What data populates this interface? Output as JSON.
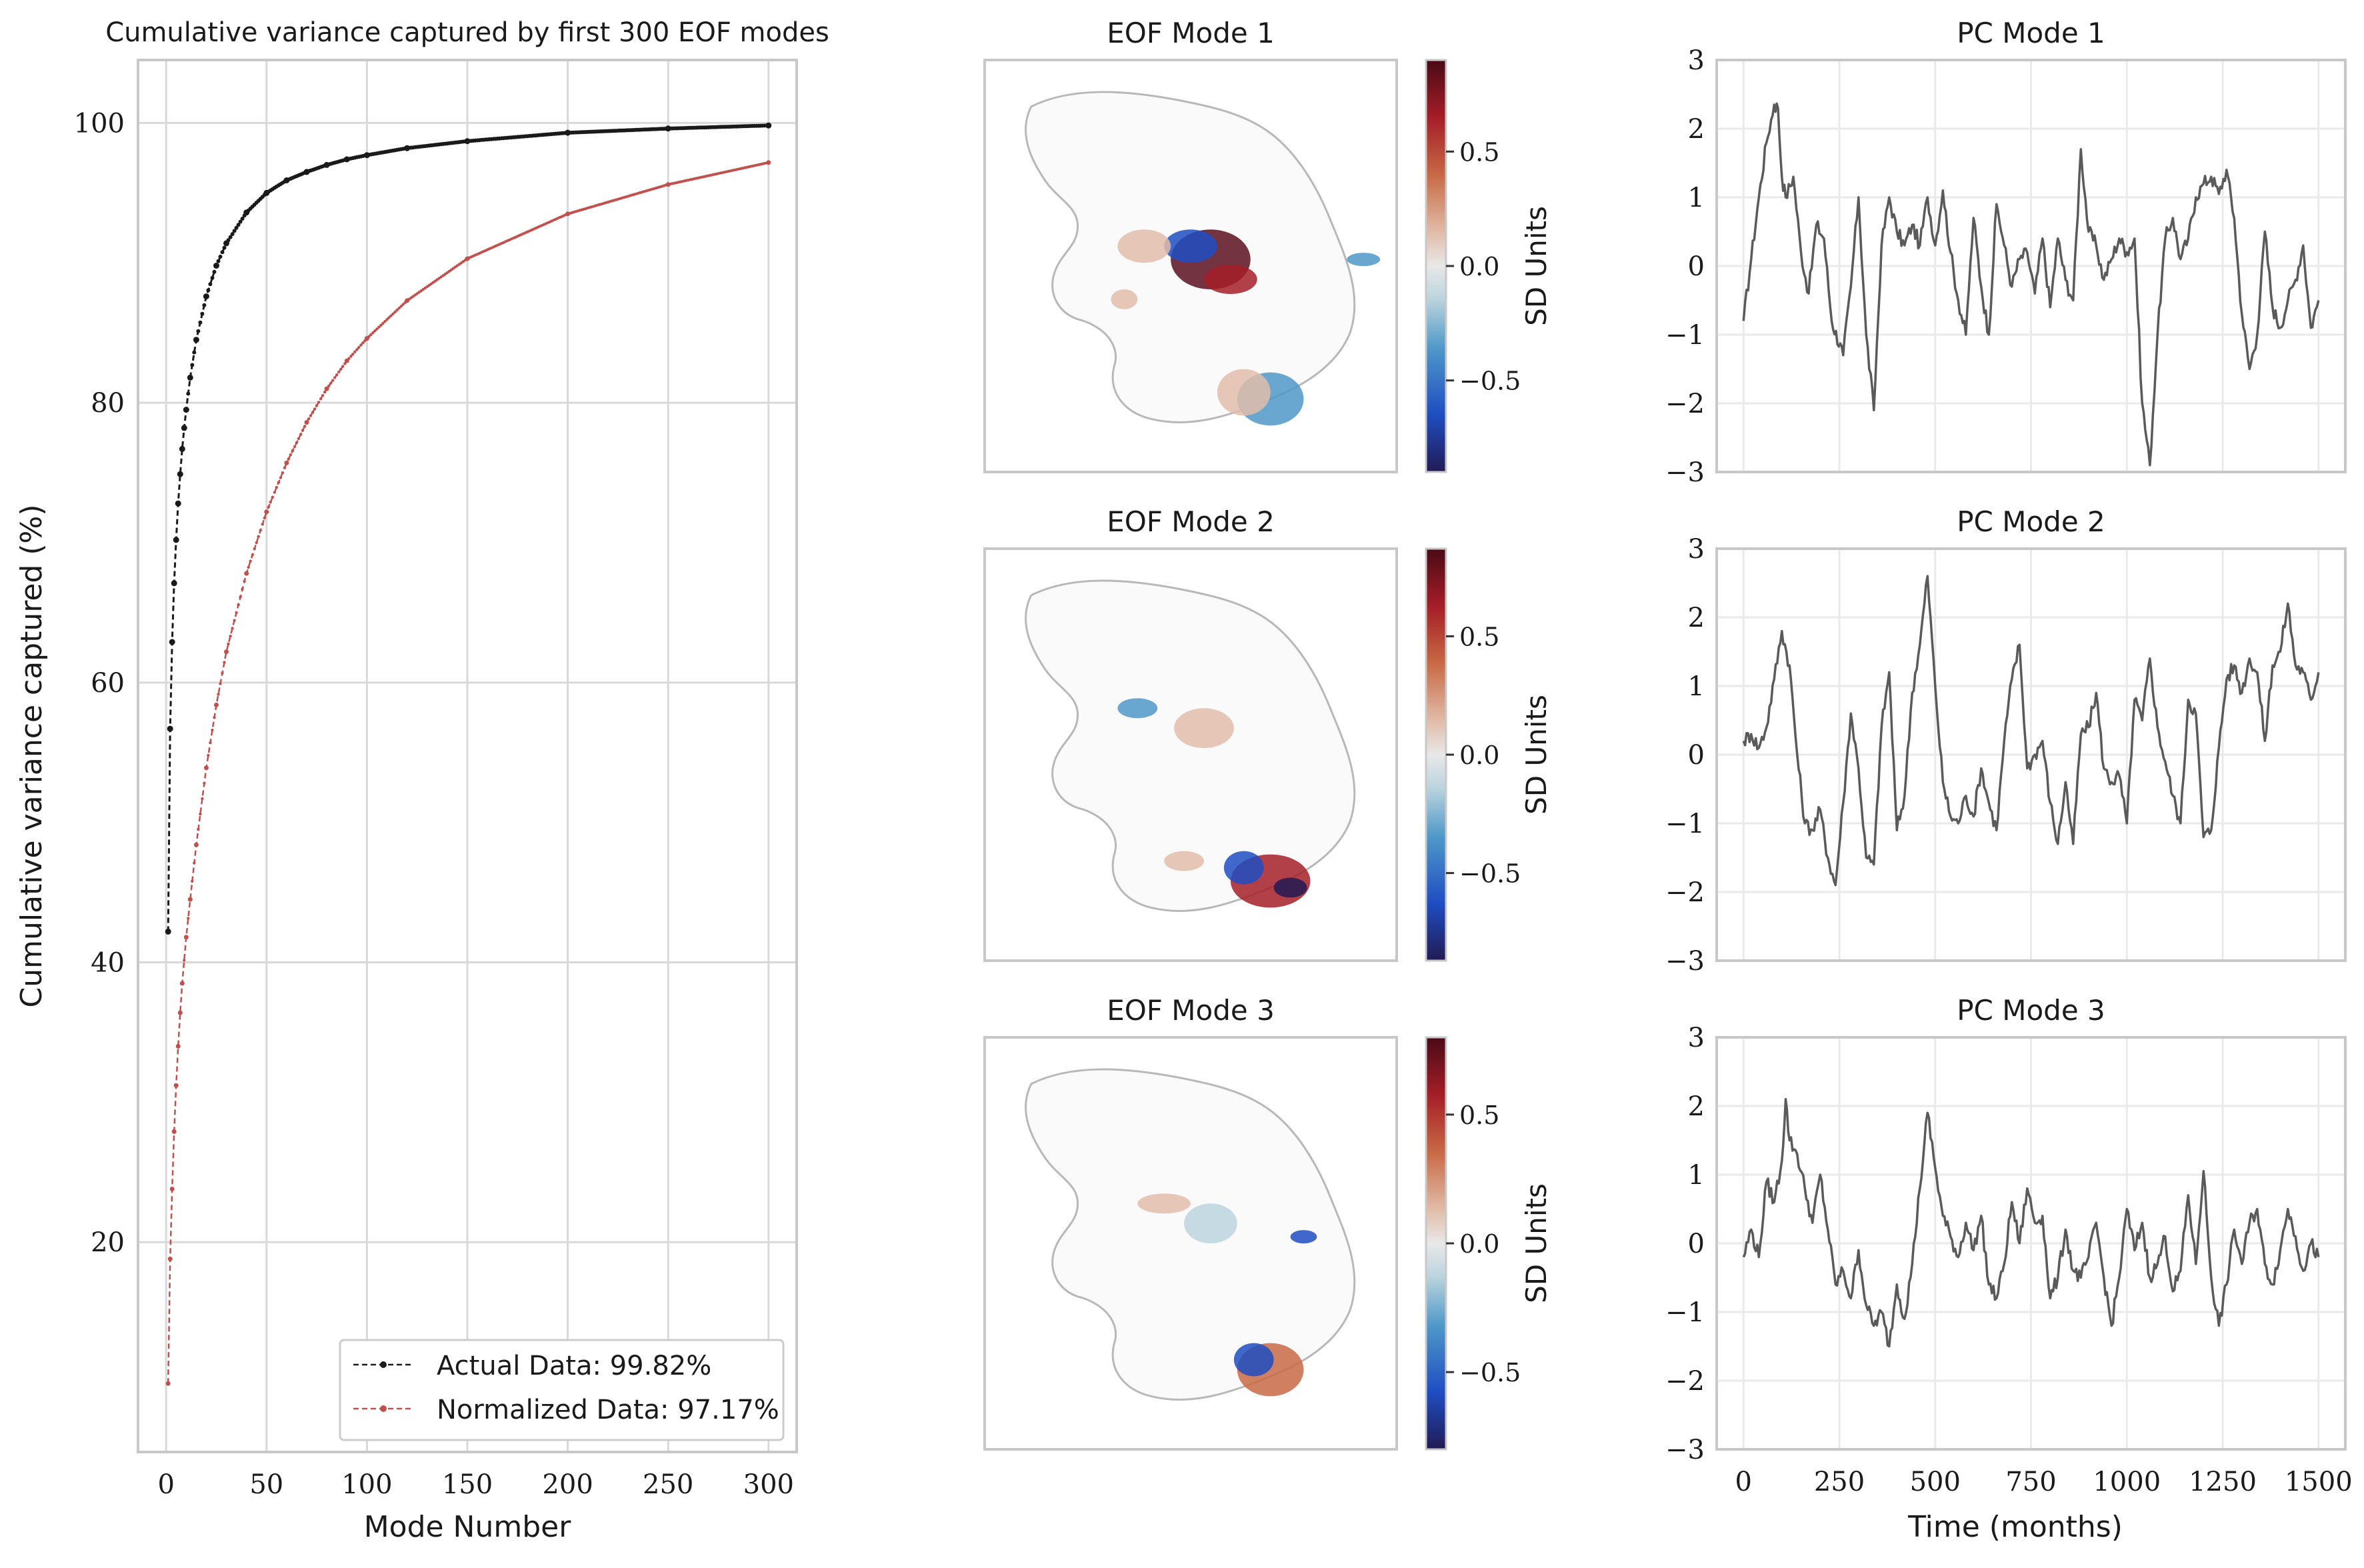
{
  "colors": {
    "actual": "#1a1a1a",
    "normalized": "#c0504d",
    "pc_line": "#5a5a5a",
    "grid": "#d9d9d9",
    "grid_light": "#eaeaea",
    "axes": "#c8c8c8",
    "cmap": [
      "#221a55",
      "#1f4ec2",
      "#4f98c9",
      "#bcd4de",
      "#e8e8e8",
      "#e2bdaa",
      "#c86a45",
      "#a51e28",
      "#4a0a16"
    ]
  },
  "chart_data": [
    {
      "type": "line",
      "title": "Cumulative variance captured by first 300 EOF modes",
      "xlabel": "Mode Number",
      "ylabel": "Cumulative variance captured (%)",
      "xlim": [
        -14,
        314
      ],
      "ylim": [
        5,
        104.5
      ],
      "xticks": [
        0,
        50,
        100,
        150,
        200,
        250,
        300
      ],
      "yticks": [
        20,
        40,
        60,
        80,
        100
      ],
      "grid": true,
      "legend_position": "lower-right",
      "series": [
        {
          "name": "Actual Data: 99.82%",
          "marker": "dot",
          "linestyle": "dashed",
          "x": [
            1,
            2,
            3,
            4,
            5,
            6,
            7,
            8,
            9,
            10,
            12,
            15,
            20,
            25,
            30,
            40,
            50,
            60,
            70,
            80,
            90,
            100,
            120,
            150,
            200,
            250,
            300
          ],
          "y": [
            42.2,
            56.7,
            62.9,
            67.1,
            70.2,
            72.8,
            74.9,
            76.7,
            78.2,
            79.5,
            81.8,
            84.5,
            87.6,
            89.8,
            91.4,
            93.6,
            95.0,
            95.9,
            96.5,
            97.0,
            97.4,
            97.7,
            98.2,
            98.7,
            99.3,
            99.6,
            99.82
          ]
        },
        {
          "name": "Normalized Data: 97.17%",
          "marker": "dot",
          "linestyle": "dashed",
          "x": [
            1,
            2,
            3,
            4,
            5,
            6,
            7,
            8,
            10,
            12,
            15,
            20,
            25,
            30,
            40,
            50,
            60,
            70,
            80,
            90,
            100,
            120,
            150,
            200,
            250,
            300
          ],
          "y": [
            9.9,
            18.8,
            23.8,
            27.9,
            31.2,
            34.0,
            36.4,
            38.5,
            41.8,
            44.5,
            48.4,
            53.9,
            58.4,
            62.2,
            67.8,
            72.2,
            75.7,
            78.6,
            81.0,
            83.0,
            84.6,
            87.3,
            90.3,
            93.5,
            95.6,
            97.17
          ]
        }
      ]
    },
    {
      "type": "heatmap",
      "panel": "map",
      "title": "EOF Mode 1",
      "colorbar_label": "SD Units",
      "colorbar_range": [
        -0.9,
        0.9
      ],
      "colorbar_ticks": [
        -0.5,
        0.0,
        0.5
      ],
      "colorbar_tick_labels": [
        "−0.5",
        "0.0",
        "0.5"
      ]
    },
    {
      "type": "heatmap",
      "panel": "map",
      "title": "EOF Mode 2",
      "colorbar_label": "SD Units",
      "colorbar_range": [
        -0.87,
        0.87
      ],
      "colorbar_ticks": [
        -0.5,
        0.0,
        0.5
      ],
      "colorbar_tick_labels": [
        "−0.5",
        "0.0",
        "0.5"
      ]
    },
    {
      "type": "heatmap",
      "panel": "map",
      "title": "EOF Mode 3",
      "colorbar_label": "SD Units",
      "colorbar_range": [
        -0.8,
        0.8
      ],
      "colorbar_ticks": [
        -0.5,
        0.0,
        0.5
      ],
      "colorbar_tick_labels": [
        "−0.5",
        "0.0",
        "0.5"
      ]
    },
    {
      "type": "line",
      "title": "PC Mode 1",
      "xlabel": "",
      "xlim": [
        -70,
        1570
      ],
      "ylim": [
        -3,
        3
      ],
      "yticks": [
        -3,
        -2,
        -1,
        0,
        1,
        2,
        3
      ],
      "grid": true,
      "series": [
        {
          "x": [
            0,
            20,
            40,
            60,
            80,
            90,
            100,
            110,
            130,
            150,
            170,
            190,
            210,
            230,
            260,
            280,
            300,
            320,
            340,
            360,
            380,
            400,
            420,
            440,
            460,
            480,
            500,
            520,
            540,
            560,
            580,
            600,
            620,
            640,
            660,
            680,
            700,
            720,
            740,
            760,
            780,
            800,
            820,
            840,
            860,
            880,
            900,
            920,
            940,
            960,
            980,
            1000,
            1020,
            1040,
            1060,
            1080,
            1100,
            1120,
            1140,
            1160,
            1180,
            1200,
            1220,
            1240,
            1260,
            1280,
            1300,
            1320,
            1340,
            1360,
            1380,
            1400,
            1420,
            1440,
            1460,
            1480,
            1500
          ],
          "y": [
            -0.8,
            0.1,
            1.0,
            1.8,
            2.35,
            2.3,
            1.3,
            1.0,
            1.3,
            0.2,
            -0.4,
            0.6,
            0.4,
            -0.8,
            -1.3,
            -0.3,
            1.0,
            -1.0,
            -2.1,
            0.3,
            1.0,
            0.5,
            0.3,
            0.6,
            0.3,
            1.0,
            0.3,
            1.1,
            0.2,
            -0.5,
            -1.0,
            0.7,
            -0.3,
            -1.0,
            0.9,
            0.3,
            -0.3,
            0.1,
            0.2,
            -0.4,
            0.4,
            -0.6,
            0.4,
            -0.2,
            -0.5,
            1.7,
            0.5,
            0.3,
            -0.2,
            0.1,
            0.4,
            0.2,
            0.4,
            -2.0,
            -2.9,
            -1.0,
            0.4,
            0.7,
            0.1,
            0.4,
            1.0,
            1.2,
            1.3,
            1.05,
            1.4,
            0.7,
            -0.7,
            -1.5,
            -1.0,
            0.5,
            -0.6,
            -0.9,
            -0.5,
            -0.2,
            0.3,
            -0.9,
            -0.5
          ]
        }
      ]
    },
    {
      "type": "line",
      "title": "PC Mode 2",
      "xlabel": "",
      "xlim": [
        -70,
        1570
      ],
      "ylim": [
        -3,
        3
      ],
      "yticks": [
        -3,
        -2,
        -1,
        0,
        1,
        2,
        3
      ],
      "grid": true,
      "series": [
        {
          "x": [
            0,
            20,
            40,
            60,
            80,
            100,
            120,
            140,
            160,
            180,
            200,
            220,
            240,
            260,
            280,
            300,
            320,
            340,
            360,
            380,
            400,
            420,
            440,
            460,
            480,
            500,
            520,
            540,
            560,
            580,
            600,
            620,
            640,
            660,
            680,
            700,
            720,
            740,
            760,
            780,
            800,
            820,
            840,
            860,
            880,
            900,
            920,
            940,
            960,
            980,
            1000,
            1020,
            1040,
            1060,
            1080,
            1100,
            1120,
            1140,
            1160,
            1180,
            1200,
            1220,
            1240,
            1260,
            1280,
            1300,
            1320,
            1340,
            1360,
            1380,
            1400,
            1420,
            1440,
            1460,
            1480,
            1500
          ],
          "y": [
            0.2,
            0.3,
            0.1,
            0.4,
            1.1,
            1.8,
            1.3,
            0.0,
            -1.0,
            -1.1,
            -0.8,
            -1.5,
            -1.9,
            -0.7,
            0.6,
            -0.2,
            -1.5,
            -1.6,
            0.4,
            1.2,
            -1.1,
            -0.6,
            0.9,
            1.6,
            2.6,
            1.0,
            -0.4,
            -0.9,
            -1.0,
            -0.6,
            -0.9,
            -0.2,
            -0.7,
            -1.1,
            0.2,
            1.1,
            1.6,
            -0.2,
            0.0,
            0.2,
            -0.7,
            -1.3,
            -0.4,
            -1.3,
            0.3,
            0.4,
            0.9,
            -0.2,
            -0.4,
            -0.3,
            -1.0,
            0.8,
            0.5,
            1.4,
            0.4,
            -0.1,
            -0.6,
            -1.0,
            0.8,
            0.6,
            -1.2,
            -1.1,
            0.1,
            1.1,
            1.3,
            0.9,
            1.4,
            1.2,
            0.2,
            1.3,
            1.5,
            2.2,
            1.3,
            1.2,
            0.8,
            1.2
          ]
        }
      ]
    },
    {
      "type": "line",
      "title": "PC Mode 3",
      "xlabel": "Time (months)",
      "xlim": [
        -70,
        1570
      ],
      "ylim": [
        -3,
        3
      ],
      "xticks": [
        0,
        250,
        500,
        750,
        1000,
        1250,
        1500
      ],
      "yticks": [
        -3,
        -2,
        -1,
        0,
        1,
        2,
        3
      ],
      "grid": true,
      "series": [
        {
          "x": [
            0,
            20,
            40,
            60,
            80,
            100,
            110,
            120,
            140,
            160,
            180,
            200,
            220,
            240,
            260,
            280,
            300,
            320,
            340,
            360,
            380,
            400,
            420,
            440,
            460,
            480,
            500,
            520,
            540,
            560,
            580,
            600,
            620,
            640,
            660,
            680,
            700,
            720,
            740,
            760,
            780,
            800,
            820,
            840,
            860,
            880,
            900,
            920,
            940,
            960,
            980,
            1000,
            1020,
            1040,
            1060,
            1080,
            1100,
            1120,
            1140,
            1160,
            1180,
            1200,
            1220,
            1240,
            1260,
            1280,
            1300,
            1320,
            1340,
            1360,
            1380,
            1400,
            1420,
            1440,
            1460,
            1480,
            1500
          ],
          "y": [
            -0.2,
            0.2,
            -0.2,
            0.9,
            0.6,
            1.2,
            2.1,
            1.5,
            1.3,
            0.8,
            0.3,
            1.0,
            0.2,
            -0.6,
            -0.4,
            -0.8,
            -0.1,
            -0.9,
            -1.2,
            -1.0,
            -1.5,
            -0.6,
            -1.1,
            -0.3,
            0.8,
            1.9,
            1.1,
            0.4,
            0.1,
            -0.2,
            0.3,
            -0.1,
            0.4,
            -0.6,
            -0.8,
            -0.3,
            0.6,
            0.0,
            0.8,
            0.3,
            0.4,
            -0.8,
            -0.5,
            0.2,
            -0.4,
            -0.5,
            -0.2,
            0.3,
            -0.5,
            -1.2,
            -0.5,
            0.5,
            -0.1,
            0.3,
            -0.5,
            -0.3,
            0.1,
            -0.7,
            -0.4,
            0.7,
            -0.3,
            1.05,
            -0.5,
            -1.2,
            -0.6,
            0.2,
            -0.3,
            0.3,
            0.5,
            -0.3,
            -0.6,
            -0.1,
            0.5,
            0.1,
            -0.4,
            0.0,
            -0.2
          ]
        }
      ]
    }
  ]
}
